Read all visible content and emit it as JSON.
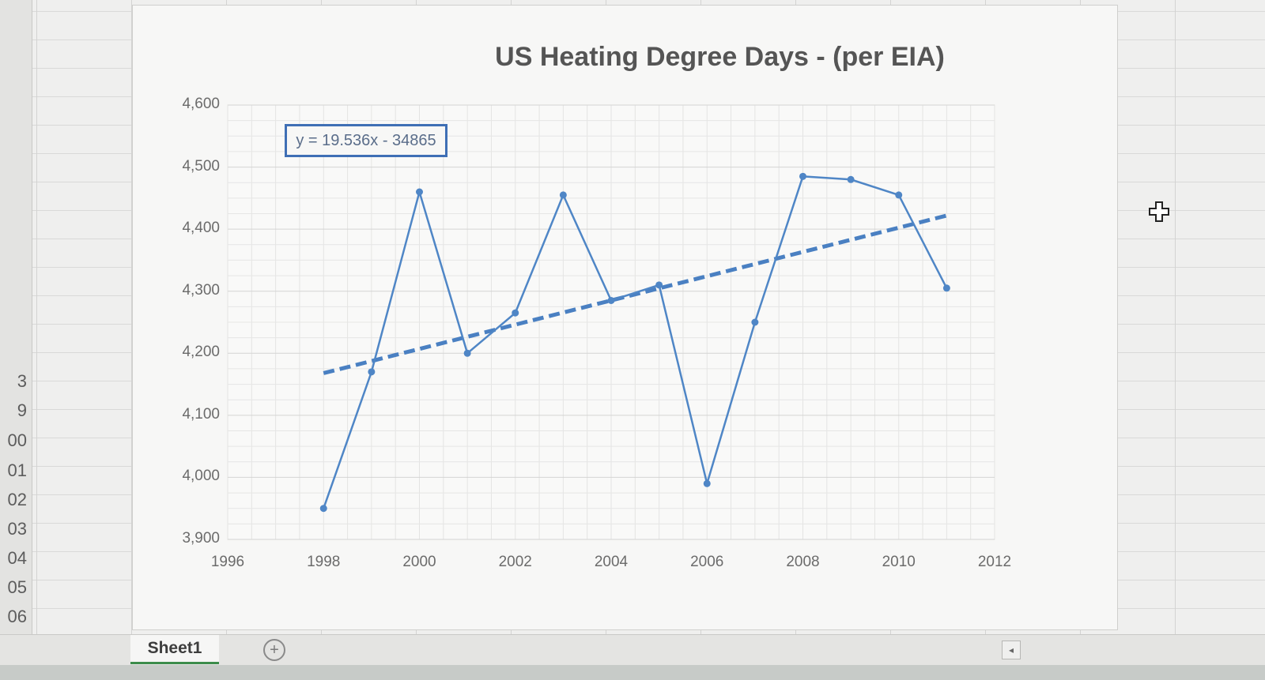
{
  "row_numbers": [
    "3",
    "9",
    "00",
    "01",
    "02",
    "03",
    "04",
    "05",
    "06"
  ],
  "sheet_tab_label": "Sheet1",
  "add_sheet_icon": "plus-circle-icon",
  "cursor_icon": "cell-select-cross-icon",
  "colors": {
    "series": "#4f86c6",
    "trendline": "#4a80c2",
    "label_border": "#3f6fb5",
    "accent_tab": "#3c8c4b"
  },
  "chart_data": {
    "type": "line",
    "title": "US Heating Degree Days - (per EIA)",
    "xlabel": "",
    "ylabel": "",
    "xlim": [
      1996,
      2012
    ],
    "ylim": [
      3900,
      4600
    ],
    "x_ticks": [
      1996,
      1998,
      2000,
      2002,
      2004,
      2006,
      2008,
      2010,
      2012
    ],
    "y_ticks": [
      3900,
      4000,
      4100,
      4200,
      4300,
      4400,
      4500,
      4600
    ],
    "x_tick_labels": [
      "1996",
      "1998",
      "2000",
      "2002",
      "2004",
      "2006",
      "2008",
      "2010",
      "2012"
    ],
    "y_tick_labels": [
      "3,900",
      "4,000",
      "4,100",
      "4,200",
      "4,300",
      "4,400",
      "4,500",
      "4,600"
    ],
    "grid": true,
    "series": [
      {
        "name": "",
        "x": [
          1998,
          1999,
          2000,
          2001,
          2002,
          2003,
          2004,
          2005,
          2006,
          2007,
          2008,
          2009,
          2010,
          2011
        ],
        "y": [
          3950,
          4170,
          4460,
          4200,
          4265,
          4455,
          4285,
          4310,
          3990,
          4250,
          4485,
          4480,
          4455,
          4305
        ]
      }
    ],
    "trendline": {
      "type": "linear",
      "equation": "y = 19.536x - 34865",
      "slope": 19.536,
      "intercept": -34865,
      "x_range": [
        1998,
        2011
      ]
    }
  }
}
